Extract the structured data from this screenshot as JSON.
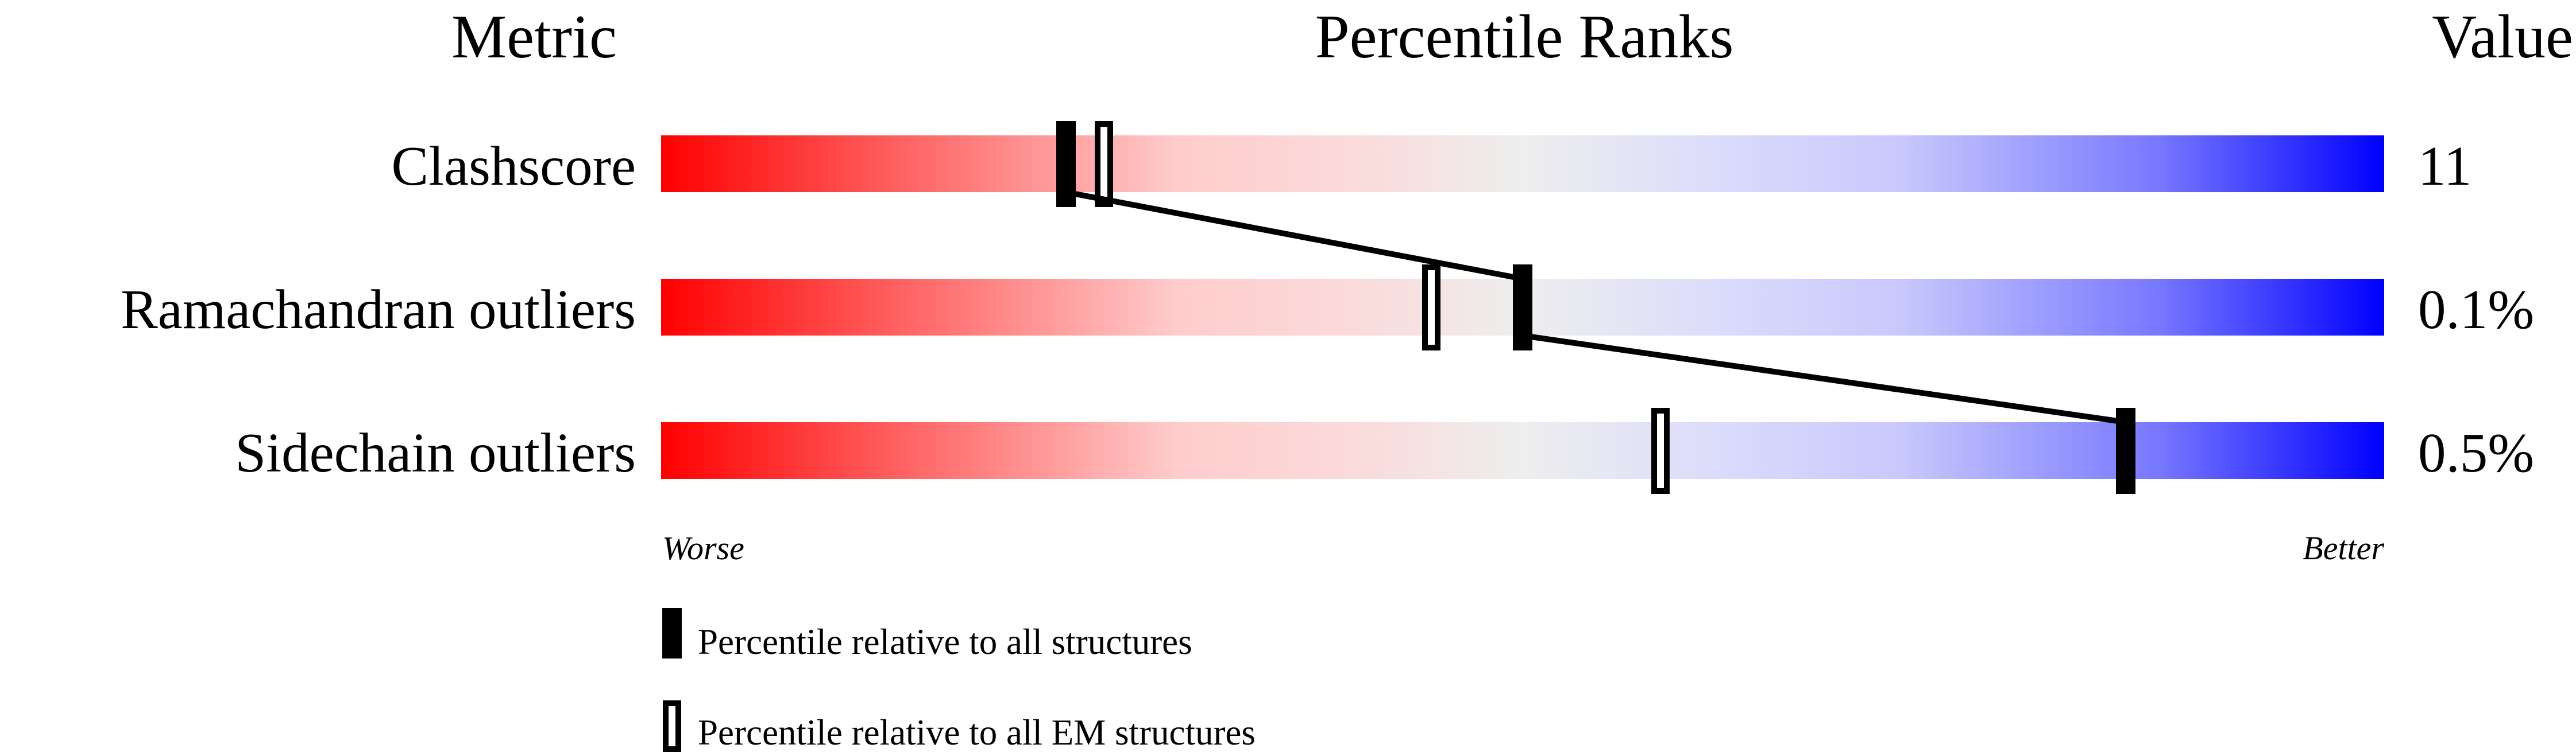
{
  "chart_data": {
    "type": "percentile-bar",
    "headers": {
      "metric": "Metric",
      "ranks": "Percentile Ranks",
      "value": "Value"
    },
    "xlim": [
      0,
      100
    ],
    "metrics": [
      {
        "label": "Clashscore",
        "value": "11",
        "percentile_all": 23.5,
        "percentile_em": 25.7
      },
      {
        "label": "Ramachandran outliers",
        "value": "0.1%",
        "percentile_all": 50,
        "percentile_em": 44.7
      },
      {
        "label": "Sidechain outliers",
        "value": "0.5%",
        "percentile_all": 85,
        "percentile_em": 58
      }
    ],
    "axis": {
      "worse": "Worse",
      "better": "Better"
    },
    "legend": [
      {
        "style": "filled",
        "label": "Percentile relative to all structures"
      },
      {
        "style": "open",
        "label": "Percentile relative to all EM structures"
      }
    ],
    "colors": {
      "worse": "#ff0000",
      "mid": "#eeeeee",
      "better": "#0000ff"
    }
  }
}
